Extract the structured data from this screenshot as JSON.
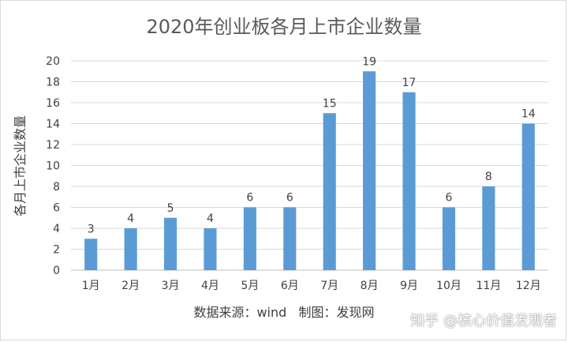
{
  "chart_data": {
    "type": "bar",
    "title": "2020年创业板各月上市企业数量",
    "ylabel": "各月上市企业数量",
    "xlabel": "",
    "categories": [
      "1月",
      "2月",
      "3月",
      "4月",
      "5月",
      "6月",
      "7月",
      "8月",
      "9月",
      "10月",
      "11月",
      "12月"
    ],
    "values": [
      3,
      4,
      5,
      4,
      6,
      6,
      15,
      19,
      17,
      6,
      8,
      14
    ],
    "ylim": [
      0,
      20
    ],
    "yticks": [
      0,
      2,
      4,
      6,
      8,
      10,
      12,
      14,
      16,
      18,
      20
    ],
    "grid": true,
    "bar_color": "#5b9bd5",
    "data_labels": true
  },
  "source_note": "数据来源：wind   制图：发现网",
  "watermark": "知乎 @核心价值发现者"
}
